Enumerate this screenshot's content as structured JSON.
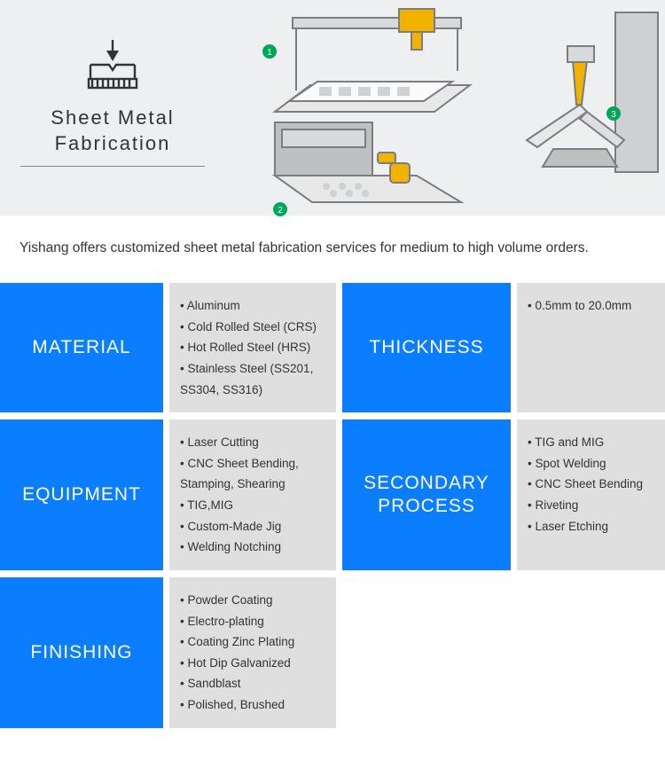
{
  "hero": {
    "title_line1": "Sheet Metal",
    "title_line2": "Fabrication",
    "icon_name": "press-brake-icon",
    "underline_color": "#888888",
    "bg_color": "#eeeff0"
  },
  "description": "Yishang offers customized sheet metal fabrication services for medium to high volume orders.",
  "colors": {
    "label_bg": "#0a7efe",
    "label_text": "#ffffff",
    "content_bg": "#dfdfdf",
    "content_text": "#333333",
    "page_bg": "#ffffff"
  },
  "typography": {
    "hero_title_fontsize": 22,
    "label_fontsize": 21,
    "content_fontsize": 13.5,
    "desc_fontsize": 15.5
  },
  "layout": {
    "grid_cols": [
      "184px",
      "188px",
      "190px",
      "188px"
    ],
    "grid_gap": 8
  },
  "cards": [
    {
      "label": "MATERIAL",
      "items": [
        "Aluminum",
        "Cold Rolled Steel (CRS)",
        "Hot Rolled Steel (HRS)",
        "Stainless Steel (SS201, SS304, SS316)"
      ]
    },
    {
      "label": "THICKNESS",
      "items": [
        "0.5mm to 20.0mm"
      ]
    },
    {
      "label": "EQUIPMENT",
      "items": [
        "Laser Cutting",
        "CNC Sheet Bending, Stamping, Shearing",
        "TIG,MIG",
        "Custom-Made Jig",
        "Welding Notching"
      ]
    },
    {
      "label": "SECONDARY PROCESS",
      "items": [
        "TIG and MIG",
        "Spot Welding",
        "CNC Sheet Bending",
        "Riveting",
        "Laser Etching"
      ]
    },
    {
      "label": "FINISHING",
      "items": [
        "Powder Coating",
        "Electro-plating",
        "Coating Zinc Plating",
        "Hot Dip Galvanized",
        "Sandblast",
        "Polished, Brushed"
      ]
    }
  ],
  "illustration": {
    "badge_color": "#00a65a",
    "accent_color": "#f2b200",
    "line_color": "#7a7e84",
    "panel_fill": "#d8d9da"
  }
}
